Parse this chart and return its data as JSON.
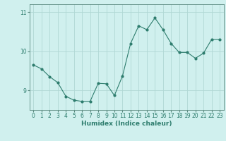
{
  "x": [
    0,
    1,
    2,
    3,
    4,
    5,
    6,
    7,
    8,
    9,
    10,
    11,
    12,
    13,
    14,
    15,
    16,
    17,
    18,
    19,
    20,
    21,
    22,
    23
  ],
  "y": [
    9.65,
    9.55,
    9.35,
    9.2,
    8.85,
    8.75,
    8.72,
    8.72,
    9.18,
    9.17,
    8.87,
    9.37,
    10.2,
    10.65,
    10.55,
    10.85,
    10.55,
    10.2,
    9.97,
    9.97,
    9.82,
    9.95,
    10.3,
    10.3
  ],
  "line_color": "#2e7d6e",
  "marker": "o",
  "marker_size": 2,
  "bg_color": "#d0f0ee",
  "grid_color": "#b0d8d4",
  "axis_color": "#5a8a80",
  "xlabel": "Humidex (Indice chaleur)",
  "ylim": [
    8.5,
    11.2
  ],
  "xlim": [
    -0.5,
    23.5
  ],
  "yticks": [
    9,
    10,
    11
  ],
  "xticks": [
    0,
    1,
    2,
    3,
    4,
    5,
    6,
    7,
    8,
    9,
    10,
    11,
    12,
    13,
    14,
    15,
    16,
    17,
    18,
    19,
    20,
    21,
    22,
    23
  ],
  "label_fontsize": 6.5,
  "tick_fontsize": 5.5,
  "figwidth": 3.2,
  "figheight": 2.0,
  "dpi": 100
}
